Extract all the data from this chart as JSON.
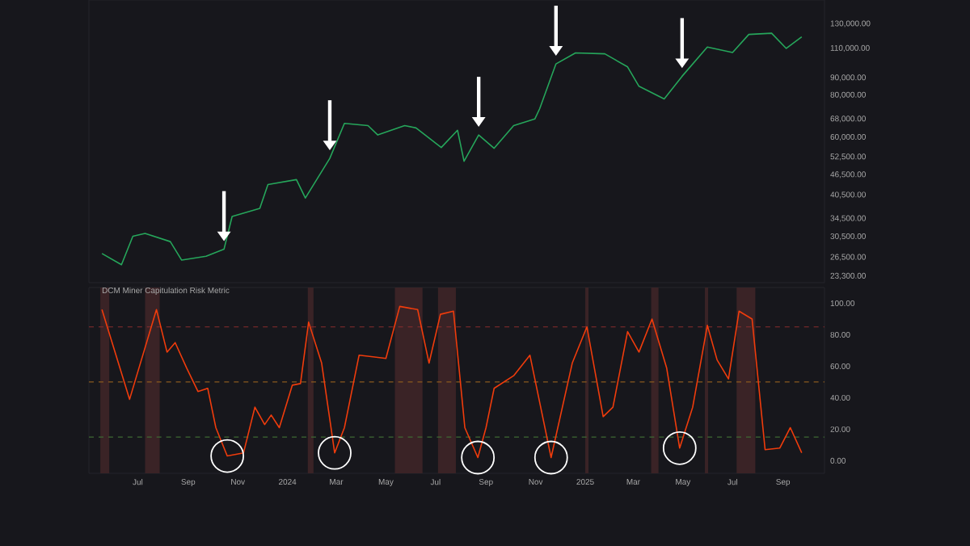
{
  "chart_data": [
    {
      "type": "line",
      "log": "y",
      "tick_labels": "y",
      "xlim": [
        "2023-05-02",
        "2025-10-22"
      ],
      "ylim": [
        22300,
        153000
      ],
      "yticks": [
        {
          "value": 23300,
          "label": "23,300.00"
        },
        {
          "value": 26500,
          "label": "26,500.00"
        },
        {
          "value": 30500,
          "label": "30,500.00"
        },
        {
          "value": 34500,
          "label": "34,500.00"
        },
        {
          "value": 40500,
          "label": "40,500.00"
        },
        {
          "value": 46500,
          "label": "46,500.00"
        },
        {
          "value": 52500,
          "label": "52,500.00"
        },
        {
          "value": 60000,
          "label": "60,000.00"
        },
        {
          "value": 68000,
          "label": "68,000.00"
        },
        {
          "value": 80000,
          "label": "80,000.00"
        },
        {
          "value": 90000,
          "label": "90,000.00"
        },
        {
          "value": 110000,
          "label": "110,000.00"
        },
        {
          "value": 130000,
          "label": "130,000.00"
        }
      ],
      "series": [
        {
          "color": "#26a65b",
          "x": [
            "2023-05-18",
            "2023-06-11",
            "2023-06-25",
            "2023-07-10",
            "2023-08-10",
            "2023-08-24",
            "2023-09-23",
            "2023-10-15",
            "2023-10-25",
            "2023-11-28",
            "2023-12-08",
            "2024-01-12",
            "2024-01-23",
            "2024-02-22",
            "2024-03-11",
            "2024-04-09",
            "2024-04-21",
            "2024-05-24",
            "2024-06-07",
            "2024-07-08",
            "2024-07-28",
            "2024-08-05",
            "2024-08-23",
            "2024-09-11",
            "2024-10-05",
            "2024-10-31",
            "2024-11-06",
            "2024-11-26",
            "2024-12-20",
            "2025-01-25",
            "2025-02-22",
            "2025-03-08",
            "2025-04-08",
            "2025-04-30",
            "2025-05-31",
            "2025-07-01",
            "2025-07-21",
            "2025-08-18",
            "2025-09-05",
            "2025-09-24"
          ],
          "values": [
            27200,
            25200,
            30600,
            31200,
            29500,
            26000,
            26700,
            28000,
            35000,
            37000,
            43500,
            45000,
            39700,
            52000,
            66000,
            65000,
            61000,
            65000,
            64000,
            56000,
            63000,
            51000,
            61000,
            55700,
            65000,
            68000,
            73000,
            99000,
            106700,
            106000,
            97000,
            85000,
            78000,
            91000,
            111000,
            107000,
            121000,
            122000,
            110000,
            119000
          ]
        }
      ]
    },
    {
      "type": "line",
      "title": "DCM Miner Capitulation Risk Metric",
      "xlim": [
        "2023-05-02",
        "2025-10-22"
      ],
      "ylim": [
        -8,
        110
      ],
      "xticks": [
        {
          "value": "2023-07-01",
          "label": "Jul"
        },
        {
          "value": "2023-09-01",
          "label": "Sep"
        },
        {
          "value": "2023-11-01",
          "label": "Nov"
        },
        {
          "value": "2024-01-01",
          "label": "2024"
        },
        {
          "value": "2024-03-01",
          "label": "Mar"
        },
        {
          "value": "2024-05-01",
          "label": "May"
        },
        {
          "value": "2024-07-01",
          "label": "Jul"
        },
        {
          "value": "2024-09-01",
          "label": "Sep"
        },
        {
          "value": "2024-11-01",
          "label": "Nov"
        },
        {
          "value": "2025-01-01",
          "label": "2025"
        },
        {
          "value": "2025-03-01",
          "label": "Mar"
        },
        {
          "value": "2025-05-01",
          "label": "May"
        },
        {
          "value": "2025-07-01",
          "label": "Jul"
        },
        {
          "value": "2025-09-01",
          "label": "Sep"
        }
      ],
      "yticks": [
        {
          "value": 0,
          "label": "0.00"
        },
        {
          "value": 20,
          "label": "20.00"
        },
        {
          "value": 40,
          "label": "40.00"
        },
        {
          "value": 60,
          "label": "60.00"
        },
        {
          "value": 80,
          "label": "80.00"
        },
        {
          "value": 100,
          "label": "100.00"
        }
      ],
      "ref_lines": [
        {
          "axis": "y",
          "value": 85,
          "color": "#8b2e2e",
          "line_style": "dashed"
        },
        {
          "axis": "y",
          "value": 50,
          "color": "#8a5a1e",
          "line_style": "dashed"
        },
        {
          "axis": "y",
          "value": 15,
          "color": "#3f6b33",
          "line_style": "dashed"
        }
      ],
      "bands": [
        {
          "axis": "x",
          "from": "2023-05-16",
          "to": "2023-05-27",
          "color": "#3a2326"
        },
        {
          "axis": "x",
          "from": "2023-07-10",
          "to": "2023-07-28",
          "color": "#3a2326"
        },
        {
          "axis": "x",
          "from": "2024-01-26",
          "to": "2024-02-02",
          "color": "#3a2326"
        },
        {
          "axis": "x",
          "from": "2024-05-12",
          "to": "2024-06-15",
          "color": "#3a2326"
        },
        {
          "axis": "x",
          "from": "2024-07-04",
          "to": "2024-07-26",
          "color": "#3a2326"
        },
        {
          "axis": "x",
          "from": "2025-01-01",
          "to": "2025-01-05",
          "color": "#3a2326"
        },
        {
          "axis": "x",
          "from": "2025-03-23",
          "to": "2025-04-01",
          "color": "#3a2326"
        },
        {
          "axis": "x",
          "from": "2025-05-28",
          "to": "2025-06-01",
          "color": "#3a2326"
        },
        {
          "axis": "x",
          "from": "2025-07-06",
          "to": "2025-07-29",
          "color": "#3a2326"
        }
      ],
      "series": [
        {
          "color": "#f03c0c",
          "x": [
            "2023-05-18",
            "2023-06-21",
            "2023-07-24",
            "2023-08-06",
            "2023-08-16",
            "2023-08-30",
            "2023-09-13",
            "2023-09-25",
            "2023-10-05",
            "2023-10-19",
            "2023-11-08",
            "2023-11-22",
            "2023-12-04",
            "2023-12-12",
            "2023-12-22",
            "2024-01-07",
            "2024-01-17",
            "2024-01-27",
            "2024-02-12",
            "2024-02-28",
            "2024-03-11",
            "2024-03-29",
            "2024-04-15",
            "2024-05-01",
            "2024-05-18",
            "2024-06-09",
            "2024-06-23",
            "2024-07-07",
            "2024-07-23",
            "2024-08-06",
            "2024-08-22",
            "2024-09-01",
            "2024-09-11",
            "2024-10-05",
            "2024-10-25",
            "2024-10-31",
            "2024-11-20",
            "2024-12-16",
            "2025-01-03",
            "2025-01-23",
            "2025-02-04",
            "2025-02-22",
            "2025-03-08",
            "2025-03-24",
            "2025-04-11",
            "2025-04-27",
            "2025-05-13",
            "2025-05-31",
            "2025-06-12",
            "2025-06-26",
            "2025-07-09",
            "2025-07-25",
            "2025-08-10",
            "2025-08-28",
            "2025-09-10",
            "2025-09-24"
          ],
          "values": [
            96,
            39,
            96,
            69,
            75,
            59,
            44,
            46,
            21,
            3,
            5,
            34,
            23,
            29,
            21,
            48,
            49,
            88,
            62,
            5,
            21,
            67,
            66,
            65,
            98,
            96,
            62,
            93,
            95,
            21,
            2,
            21,
            46,
            54,
            67,
            52,
            2,
            62,
            85,
            28,
            34,
            82,
            69,
            90,
            59,
            8,
            34,
            86,
            64,
            52,
            95,
            90,
            7,
            8,
            21,
            5
          ]
        }
      ]
    }
  ]
}
